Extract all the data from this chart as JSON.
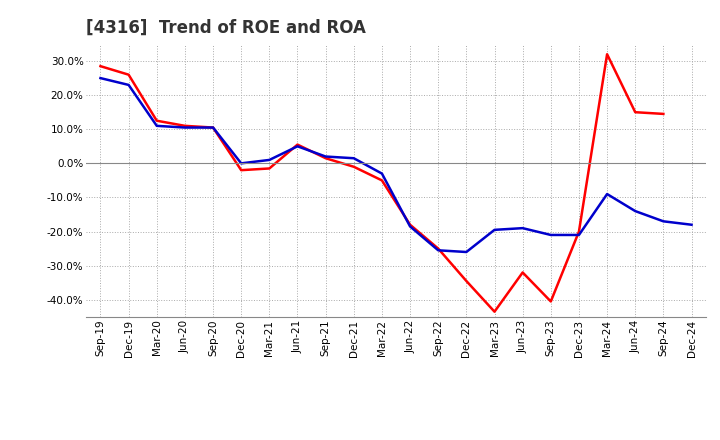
{
  "title": "[4316]  Trend of ROE and ROA",
  "x_labels": [
    "Sep-19",
    "Dec-19",
    "Mar-20",
    "Jun-20",
    "Sep-20",
    "Dec-20",
    "Mar-21",
    "Jun-21",
    "Sep-21",
    "Dec-21",
    "Mar-22",
    "Jun-22",
    "Sep-22",
    "Dec-22",
    "Mar-23",
    "Jun-23",
    "Sep-23",
    "Dec-23",
    "Mar-24",
    "Jun-24",
    "Sep-24",
    "Dec-24"
  ],
  "roe": [
    28.5,
    26.0,
    12.5,
    11.0,
    10.5,
    -2.0,
    -1.5,
    5.5,
    1.5,
    -1.0,
    -5.0,
    -18.0,
    -25.0,
    -34.5,
    -43.5,
    -32.0,
    -40.5,
    -20.0,
    32.0,
    15.0,
    14.5,
    null
  ],
  "roa": [
    25.0,
    23.0,
    11.0,
    10.5,
    10.5,
    0.0,
    1.0,
    5.0,
    2.0,
    1.5,
    -3.0,
    -18.5,
    -25.5,
    -26.0,
    -19.5,
    -19.0,
    -21.0,
    -21.0,
    -9.0,
    -14.0,
    -17.0,
    -18.0
  ],
  "roe_color": "#FF0000",
  "roa_color": "#0000CC",
  "background_color": "#FFFFFF",
  "grid_color": "#AAAAAA",
  "ylim": [
    -45,
    35
  ],
  "yticks": [
    -40.0,
    -30.0,
    -20.0,
    -10.0,
    0.0,
    10.0,
    20.0,
    30.0
  ],
  "line_width": 1.8,
  "title_fontsize": 12,
  "tick_fontsize": 7.5,
  "legend_fontsize": 9
}
